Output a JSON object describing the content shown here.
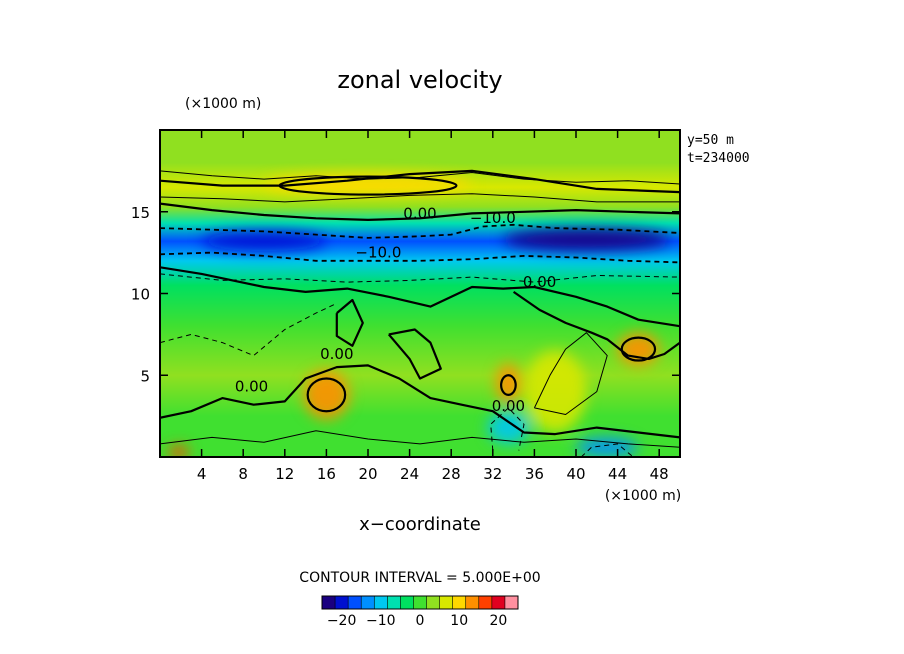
{
  "chart_data": {
    "type": "heatmap",
    "title": "zonal velocity",
    "xlabel": "x−coordinate",
    "x_unit": "(×1000 m)",
    "y_unit": "(×1000 m)",
    "xlim": [
      0,
      50
    ],
    "ylim": [
      0,
      20
    ],
    "x_ticks": [
      4,
      8,
      12,
      16,
      20,
      24,
      28,
      32,
      36,
      40,
      44,
      48
    ],
    "y_ticks": [
      5,
      10,
      15
    ],
    "info_lines": [
      "y=50 m",
      "t=234000"
    ],
    "contour_interval_text": "CONTOUR INTERVAL = 5.000E+00",
    "colorbar": {
      "min": -25,
      "max": 25,
      "tick_values": [
        -20,
        -10,
        0,
        10,
        20
      ],
      "tick_labels": [
        "−20",
        "−10",
        "0",
        "10",
        "20"
      ],
      "colors": [
        "#1a0080",
        "#0010d0",
        "#0050ff",
        "#0090ff",
        "#00c8f0",
        "#00e0b0",
        "#00e060",
        "#40e030",
        "#90e020",
        "#d8e800",
        "#ffd800",
        "#ff9000",
        "#ff4000",
        "#e00020",
        "#ff90a0"
      ]
    },
    "contour_labels": [
      {
        "text": "0.00",
        "x": 25.0,
        "y": 14.6
      },
      {
        "text": "−10.0",
        "x": 32.0,
        "y": 14.3
      },
      {
        "text": "−10.0",
        "x": 21.0,
        "y": 12.2
      },
      {
        "text": "0.00",
        "x": 36.5,
        "y": 10.4
      },
      {
        "text": "0.00",
        "x": 17.0,
        "y": 6.0
      },
      {
        "text": "0.00",
        "x": 8.8,
        "y": 4.0
      },
      {
        "text": "0.00",
        "x": 33.5,
        "y": 2.8
      }
    ],
    "bands": [
      {
        "y": 18.0,
        "value": 3
      },
      {
        "y": 16.5,
        "value": 8
      },
      {
        "y": 15.3,
        "value": 2
      },
      {
        "y": 14.3,
        "value": -6
      },
      {
        "y": 13.2,
        "value": -17
      },
      {
        "y": 12.0,
        "value": -11
      },
      {
        "y": 10.5,
        "value": -2
      },
      {
        "y": 8.0,
        "value": 1
      },
      {
        "y": 5.0,
        "value": 2
      },
      {
        "y": 2.5,
        "value": 1
      },
      {
        "y": 0.8,
        "value": -1
      }
    ],
    "anomalies": [
      {
        "x": 20.0,
        "y": 16.7,
        "rx": 10,
        "ry": 0.6,
        "value": 10
      },
      {
        "x": 16.0,
        "y": 3.8,
        "rx": 2.2,
        "ry": 1.5,
        "value": 13
      },
      {
        "x": 33.5,
        "y": 4.5,
        "rx": 1.2,
        "ry": 1.2,
        "value": 12
      },
      {
        "x": 46.0,
        "y": 6.6,
        "rx": 2.0,
        "ry": 1.0,
        "value": 14
      },
      {
        "x": 33.5,
        "y": 1.8,
        "rx": 2.0,
        "ry": 1.0,
        "value": -9
      },
      {
        "x": 43.0,
        "y": 0.6,
        "rx": 3.0,
        "ry": 0.6,
        "value": -12
      },
      {
        "x": 38.0,
        "y": 4.0,
        "rx": 3.0,
        "ry": 2.5,
        "value": 7
      },
      {
        "x": 1.8,
        "y": 0.3,
        "rx": 1.0,
        "ry": 0.4,
        "value": 16
      },
      {
        "x": 10.0,
        "y": 13.2,
        "rx": 6.0,
        "ry": 0.6,
        "value": -20
      },
      {
        "x": 41.0,
        "y": 13.3,
        "rx": 8.0,
        "ry": 0.7,
        "value": -22
      }
    ],
    "contour_lines": [
      {
        "style": "solid",
        "width": 2.2,
        "points": [
          [
            0,
            15.5
          ],
          [
            5,
            15.1
          ],
          [
            10,
            14.8
          ],
          [
            15,
            14.6
          ],
          [
            20,
            14.5
          ],
          [
            25,
            14.6
          ],
          [
            30,
            14.9
          ],
          [
            35,
            15.0
          ],
          [
            40,
            15.1
          ],
          [
            45,
            15.0
          ],
          [
            50,
            14.9
          ]
        ]
      },
      {
        "style": "dashed",
        "width": 1.8,
        "points": [
          [
            0,
            14.0
          ],
          [
            5,
            13.9
          ],
          [
            10,
            13.8
          ],
          [
            15,
            13.6
          ],
          [
            20,
            13.4
          ],
          [
            25,
            13.5
          ],
          [
            28,
            13.6
          ],
          [
            31,
            14.1
          ],
          [
            34,
            14.2
          ],
          [
            38,
            14.0
          ],
          [
            44,
            13.9
          ],
          [
            50,
            13.7
          ]
        ]
      },
      {
        "style": "dashed",
        "width": 1.8,
        "points": [
          [
            0,
            12.4
          ],
          [
            5,
            12.5
          ],
          [
            10,
            12.3
          ],
          [
            15,
            12.0
          ],
          [
            20,
            12.0
          ],
          [
            25,
            12.0
          ],
          [
            30,
            12.1
          ],
          [
            35,
            12.3
          ],
          [
            40,
            12.2
          ],
          [
            45,
            12.0
          ],
          [
            50,
            11.9
          ]
        ]
      },
      {
        "style": "dashed",
        "width": 1.0,
        "points": [
          [
            0,
            11.2
          ],
          [
            6,
            10.8
          ],
          [
            12,
            10.9
          ],
          [
            18,
            10.7
          ],
          [
            24,
            10.8
          ],
          [
            30,
            11.0
          ],
          [
            36,
            10.7
          ],
          [
            42,
            11.1
          ],
          [
            50,
            11.0
          ]
        ]
      },
      {
        "style": "solid",
        "width": 2.2,
        "points": [
          [
            0,
            11.6
          ],
          [
            4,
            11.2
          ],
          [
            10,
            10.4
          ],
          [
            14,
            10.1
          ],
          [
            18,
            10.3
          ],
          [
            22,
            9.8
          ],
          [
            26,
            9.2
          ],
          [
            30,
            10.4
          ],
          [
            33,
            10.3
          ],
          [
            36,
            10.4
          ],
          [
            40,
            9.8
          ],
          [
            43,
            9.2
          ],
          [
            46,
            8.4
          ],
          [
            50,
            8.0
          ]
        ]
      },
      {
        "style": "solid",
        "width": 1.0,
        "points": [
          [
            0,
            17.5
          ],
          [
            5,
            17.2
          ],
          [
            10,
            17.0
          ],
          [
            15,
            17.2
          ],
          [
            20,
            17.0
          ],
          [
            25,
            17.1
          ],
          [
            30,
            17.4
          ],
          [
            35,
            17.0
          ],
          [
            40,
            16.8
          ],
          [
            45,
            16.9
          ],
          [
            50,
            16.7
          ]
        ]
      },
      {
        "style": "solid",
        "width": 2.2,
        "points": [
          [
            0,
            16.9
          ],
          [
            6,
            16.6
          ],
          [
            12,
            16.6
          ],
          [
            18,
            16.9
          ],
          [
            24,
            17.3
          ],
          [
            30,
            17.5
          ],
          [
            36,
            17.0
          ],
          [
            42,
            16.4
          ],
          [
            50,
            16.2
          ]
        ]
      },
      {
        "style": "solid",
        "width": 1.0,
        "points": [
          [
            0,
            15.9
          ],
          [
            6,
            15.8
          ],
          [
            12,
            15.6
          ],
          [
            18,
            15.8
          ],
          [
            24,
            16.0
          ],
          [
            30,
            16.1
          ],
          [
            36,
            15.9
          ],
          [
            42,
            15.6
          ],
          [
            50,
            15.6
          ]
        ]
      },
      {
        "style": "solid",
        "width": 2.2,
        "points": [
          [
            0,
            2.4
          ],
          [
            3,
            2.8
          ],
          [
            6,
            3.6
          ],
          [
            9,
            3.2
          ],
          [
            12,
            3.4
          ],
          [
            14,
            4.8
          ],
          [
            17,
            5.5
          ],
          [
            20,
            5.6
          ],
          [
            23,
            4.8
          ],
          [
            26,
            3.6
          ],
          [
            29,
            3.2
          ],
          [
            32,
            2.8
          ],
          [
            35,
            1.5
          ],
          [
            38,
            1.4
          ],
          [
            42,
            1.8
          ],
          [
            46,
            1.5
          ],
          [
            50,
            1.2
          ]
        ]
      },
      {
        "style": "solid",
        "width": 1.0,
        "points": [
          [
            0,
            0.8
          ],
          [
            5,
            1.2
          ],
          [
            10,
            0.9
          ],
          [
            15,
            1.6
          ],
          [
            20,
            1.1
          ],
          [
            25,
            0.8
          ],
          [
            30,
            1.2
          ],
          [
            35,
            0.9
          ],
          [
            40,
            1.1
          ],
          [
            45,
            0.8
          ],
          [
            50,
            0.6
          ]
        ]
      },
      {
        "style": "solid",
        "width": 2.2,
        "points": [
          [
            34,
            10.1
          ],
          [
            36.5,
            9.0
          ],
          [
            39,
            8.2
          ],
          [
            41.5,
            7.6
          ],
          [
            43,
            7.2
          ],
          [
            45,
            6.2
          ],
          [
            47,
            6.0
          ],
          [
            48.5,
            6.3
          ],
          [
            50,
            7.0
          ]
        ]
      },
      {
        "style": "solid",
        "width": 1.0,
        "points": [
          [
            36,
            3.0
          ],
          [
            37.5,
            5.0
          ],
          [
            39,
            6.6
          ],
          [
            41,
            7.6
          ],
          [
            43,
            6.2
          ],
          [
            42,
            4.0
          ],
          [
            39,
            2.6
          ],
          [
            36,
            3.0
          ]
        ]
      },
      {
        "style": "solid",
        "width": 2.2,
        "points": [
          [
            22,
            7.5
          ],
          [
            24,
            6.0
          ],
          [
            25,
            4.8
          ],
          [
            27,
            5.4
          ],
          [
            26,
            7.0
          ],
          [
            24.5,
            7.8
          ],
          [
            22,
            7.5
          ]
        ]
      },
      {
        "style": "solid",
        "width": 2.2,
        "points": [
          [
            17,
            8.8
          ],
          [
            18.5,
            9.6
          ],
          [
            19.5,
            8.2
          ],
          [
            18.5,
            6.8
          ],
          [
            17,
            7.4
          ],
          [
            17,
            8.8
          ]
        ]
      },
      {
        "style": "dashed",
        "width": 1.0,
        "points": [
          [
            0,
            7.0
          ],
          [
            3,
            7.5
          ],
          [
            6,
            7.0
          ],
          [
            9,
            6.2
          ],
          [
            12,
            7.8
          ],
          [
            15,
            8.8
          ],
          [
            17,
            9.4
          ]
        ]
      },
      {
        "style": "dashed",
        "width": 1.0,
        "points": [
          [
            32,
            0.4
          ],
          [
            31.8,
            2.0
          ],
          [
            33.5,
            3.0
          ],
          [
            35,
            2.0
          ],
          [
            34.5,
            0.4
          ]
        ]
      },
      {
        "style": "dashed",
        "width": 1.0,
        "points": [
          [
            40.5,
            0
          ],
          [
            41.5,
            0.6
          ],
          [
            44,
            0.8
          ],
          [
            45.5,
            0
          ]
        ]
      }
    ],
    "closed_contours": [
      {
        "x": 20.0,
        "y": 16.6,
        "rx": 8.5,
        "ry": 0.55
      },
      {
        "x": 16.0,
        "y": 3.8,
        "rx": 1.8,
        "ry": 1.0
      },
      {
        "x": 33.5,
        "y": 4.4,
        "rx": 0.7,
        "ry": 0.6
      },
      {
        "x": 46.0,
        "y": 6.6,
        "rx": 1.6,
        "ry": 0.7
      }
    ]
  }
}
